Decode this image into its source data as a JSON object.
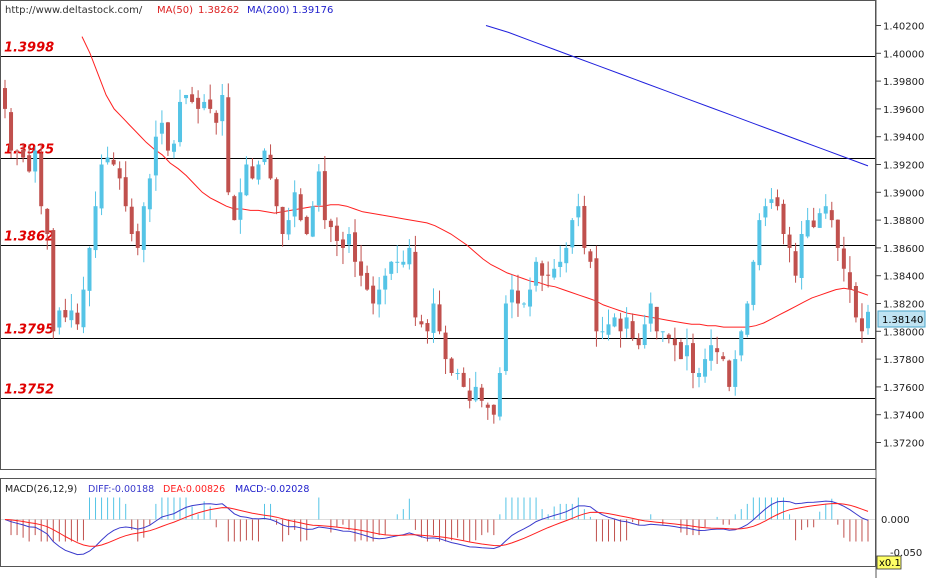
{
  "header": {
    "source": "http://www.deltastock.com/",
    "ma50_label": "MA(50)",
    "ma50_value": "1.38262",
    "ma200_label": "MA(200)",
    "ma200_value": "1.39176"
  },
  "colors": {
    "bull": "#55c4e6",
    "bear": "#c0504d",
    "ma50": "#ff2020",
    "ma200": "#2020dd",
    "level_text": "#e00000",
    "diff": "#3a3acc",
    "dea": "#ff2020"
  },
  "price_axis": {
    "ticks": [
      "1.37200",
      "1.37400",
      "1.37600",
      "1.37800",
      "1.38000",
      "1.38200",
      "1.38400",
      "1.38600",
      "1.38800",
      "1.39000",
      "1.39200",
      "1.39400",
      "1.39600",
      "1.39800",
      "1.40000",
      "1.40200"
    ],
    "current_price": "1.38140"
  },
  "levels": [
    {
      "label": "1.3998",
      "value": 1.3998
    },
    {
      "label": "1.3925",
      "value": 1.3925
    },
    {
      "label": "1.3862",
      "value": 1.3862
    },
    {
      "label": "1.3795",
      "value": 1.3795
    },
    {
      "label": "1.3752",
      "value": 1.3752
    }
  ],
  "macd": {
    "title": "MACD(26,12,9)",
    "diff_label": "DIFF:-0.00188",
    "dea_label": "DEA:0.00826",
    "macd_label": "MACD:-0.02028",
    "ticks": [
      "0.000",
      "-0.050"
    ],
    "scale_badge": "x0.1"
  },
  "chart_data": {
    "type": "candlestick",
    "ylim": [
      1.3708,
      1.4032
    ],
    "close": [
      1.396,
      1.393,
      1.393,
      1.3925,
      1.3915,
      1.393,
      1.389,
      1.387,
      1.38,
      1.3815,
      1.381,
      1.3815,
      1.3805,
      1.383,
      1.386,
      1.389,
      1.392,
      1.3925,
      1.392,
      1.391,
      1.389,
      1.387,
      1.386,
      1.389,
      1.391,
      1.394,
      1.395,
      1.393,
      1.3935,
      1.3965,
      1.397,
      1.3965,
      1.396,
      1.3965,
      1.396,
      1.395,
      1.397,
      1.39,
      1.388,
      1.39,
      1.392,
      1.391,
      1.392,
      1.393,
      1.391,
      1.389,
      1.387,
      1.388,
      1.39,
      1.388,
      1.387,
      1.389,
      1.3915,
      1.388,
      1.3875,
      1.3865,
      1.386,
      1.387,
      1.385,
      1.384,
      1.383,
      1.382,
      1.383,
      1.384,
      1.385,
      1.385,
      1.385,
      1.386,
      1.381,
      1.3805,
      1.38,
      1.382,
      1.38,
      1.378,
      1.377,
      1.377,
      1.376,
      1.375,
      1.376,
      1.375,
      1.3745,
      1.374,
      1.377,
      1.382,
      1.383,
      1.382,
      1.382,
      1.383,
      1.385,
      1.384,
      1.384,
      1.3845,
      1.385,
      1.386,
      1.388,
      1.389,
      1.386,
      1.385,
      1.38,
      1.38,
      1.3805,
      1.381,
      1.38,
      1.381,
      1.3795,
      1.379,
      1.3805,
      1.382,
      1.38,
      1.38,
      1.3795,
      1.379,
      1.378,
      1.379,
      1.377,
      1.377,
      1.378,
      1.379,
      1.3785,
      1.378,
      1.376,
      1.378,
      1.38,
      1.382,
      1.385,
      1.388,
      1.389,
      1.3895,
      1.389,
      1.387,
      1.386,
      1.384,
      1.387,
      1.388,
      1.3875,
      1.3885,
      1.389,
      1.388,
      1.386,
      1.3845,
      1.383,
      1.381,
      1.38,
      1.3814
    ],
    "ma50": [
      1.4012,
      1.4,
      1.3985,
      1.397,
      1.396,
      1.3954,
      1.3948,
      1.3942,
      1.3936,
      1.3931,
      1.3927,
      1.3921,
      1.3917,
      1.3912,
      1.3906,
      1.39,
      1.3896,
      1.3893,
      1.389,
      1.3888,
      1.3888,
      1.3887,
      1.3887,
      1.3886,
      1.3885,
      1.3886,
      1.3887,
      1.3888,
      1.3889,
      1.389,
      1.389,
      1.3891,
      1.3891,
      1.389,
      1.3888,
      1.3886,
      1.3885,
      1.3884,
      1.3883,
      1.3882,
      1.3881,
      1.388,
      1.3879,
      1.3878,
      1.3876,
      1.3873,
      1.387,
      1.3866,
      1.3862,
      1.3857,
      1.3852,
      1.3848,
      1.3845,
      1.3842,
      1.384,
      1.3838,
      1.3836,
      1.3835,
      1.3833,
      1.3832,
      1.383,
      1.3828,
      1.3826,
      1.3824,
      1.3822,
      1.3819,
      1.3817,
      1.3815,
      1.3813,
      1.3812,
      1.3811,
      1.381,
      1.3809,
      1.3808,
      1.3807,
      1.3806,
      1.3805,
      1.3805,
      1.3804,
      1.3804,
      1.3803,
      1.3803,
      1.3803,
      1.3803,
      1.3804,
      1.3806,
      1.3809,
      1.3812,
      1.3815,
      1.3818,
      1.3821,
      1.3824,
      1.3826,
      1.3828,
      1.383,
      1.3831,
      1.383,
      1.3828,
      1.3826
    ],
    "ma200": [
      1.402,
      1.4015,
      1.4009,
      1.4003,
      1.3997,
      1.3991,
      1.3985,
      1.3979,
      1.3973,
      1.3967,
      1.3961,
      1.3955,
      1.3949,
      1.3943,
      1.3937,
      1.3931,
      1.3925,
      1.3919
    ]
  }
}
